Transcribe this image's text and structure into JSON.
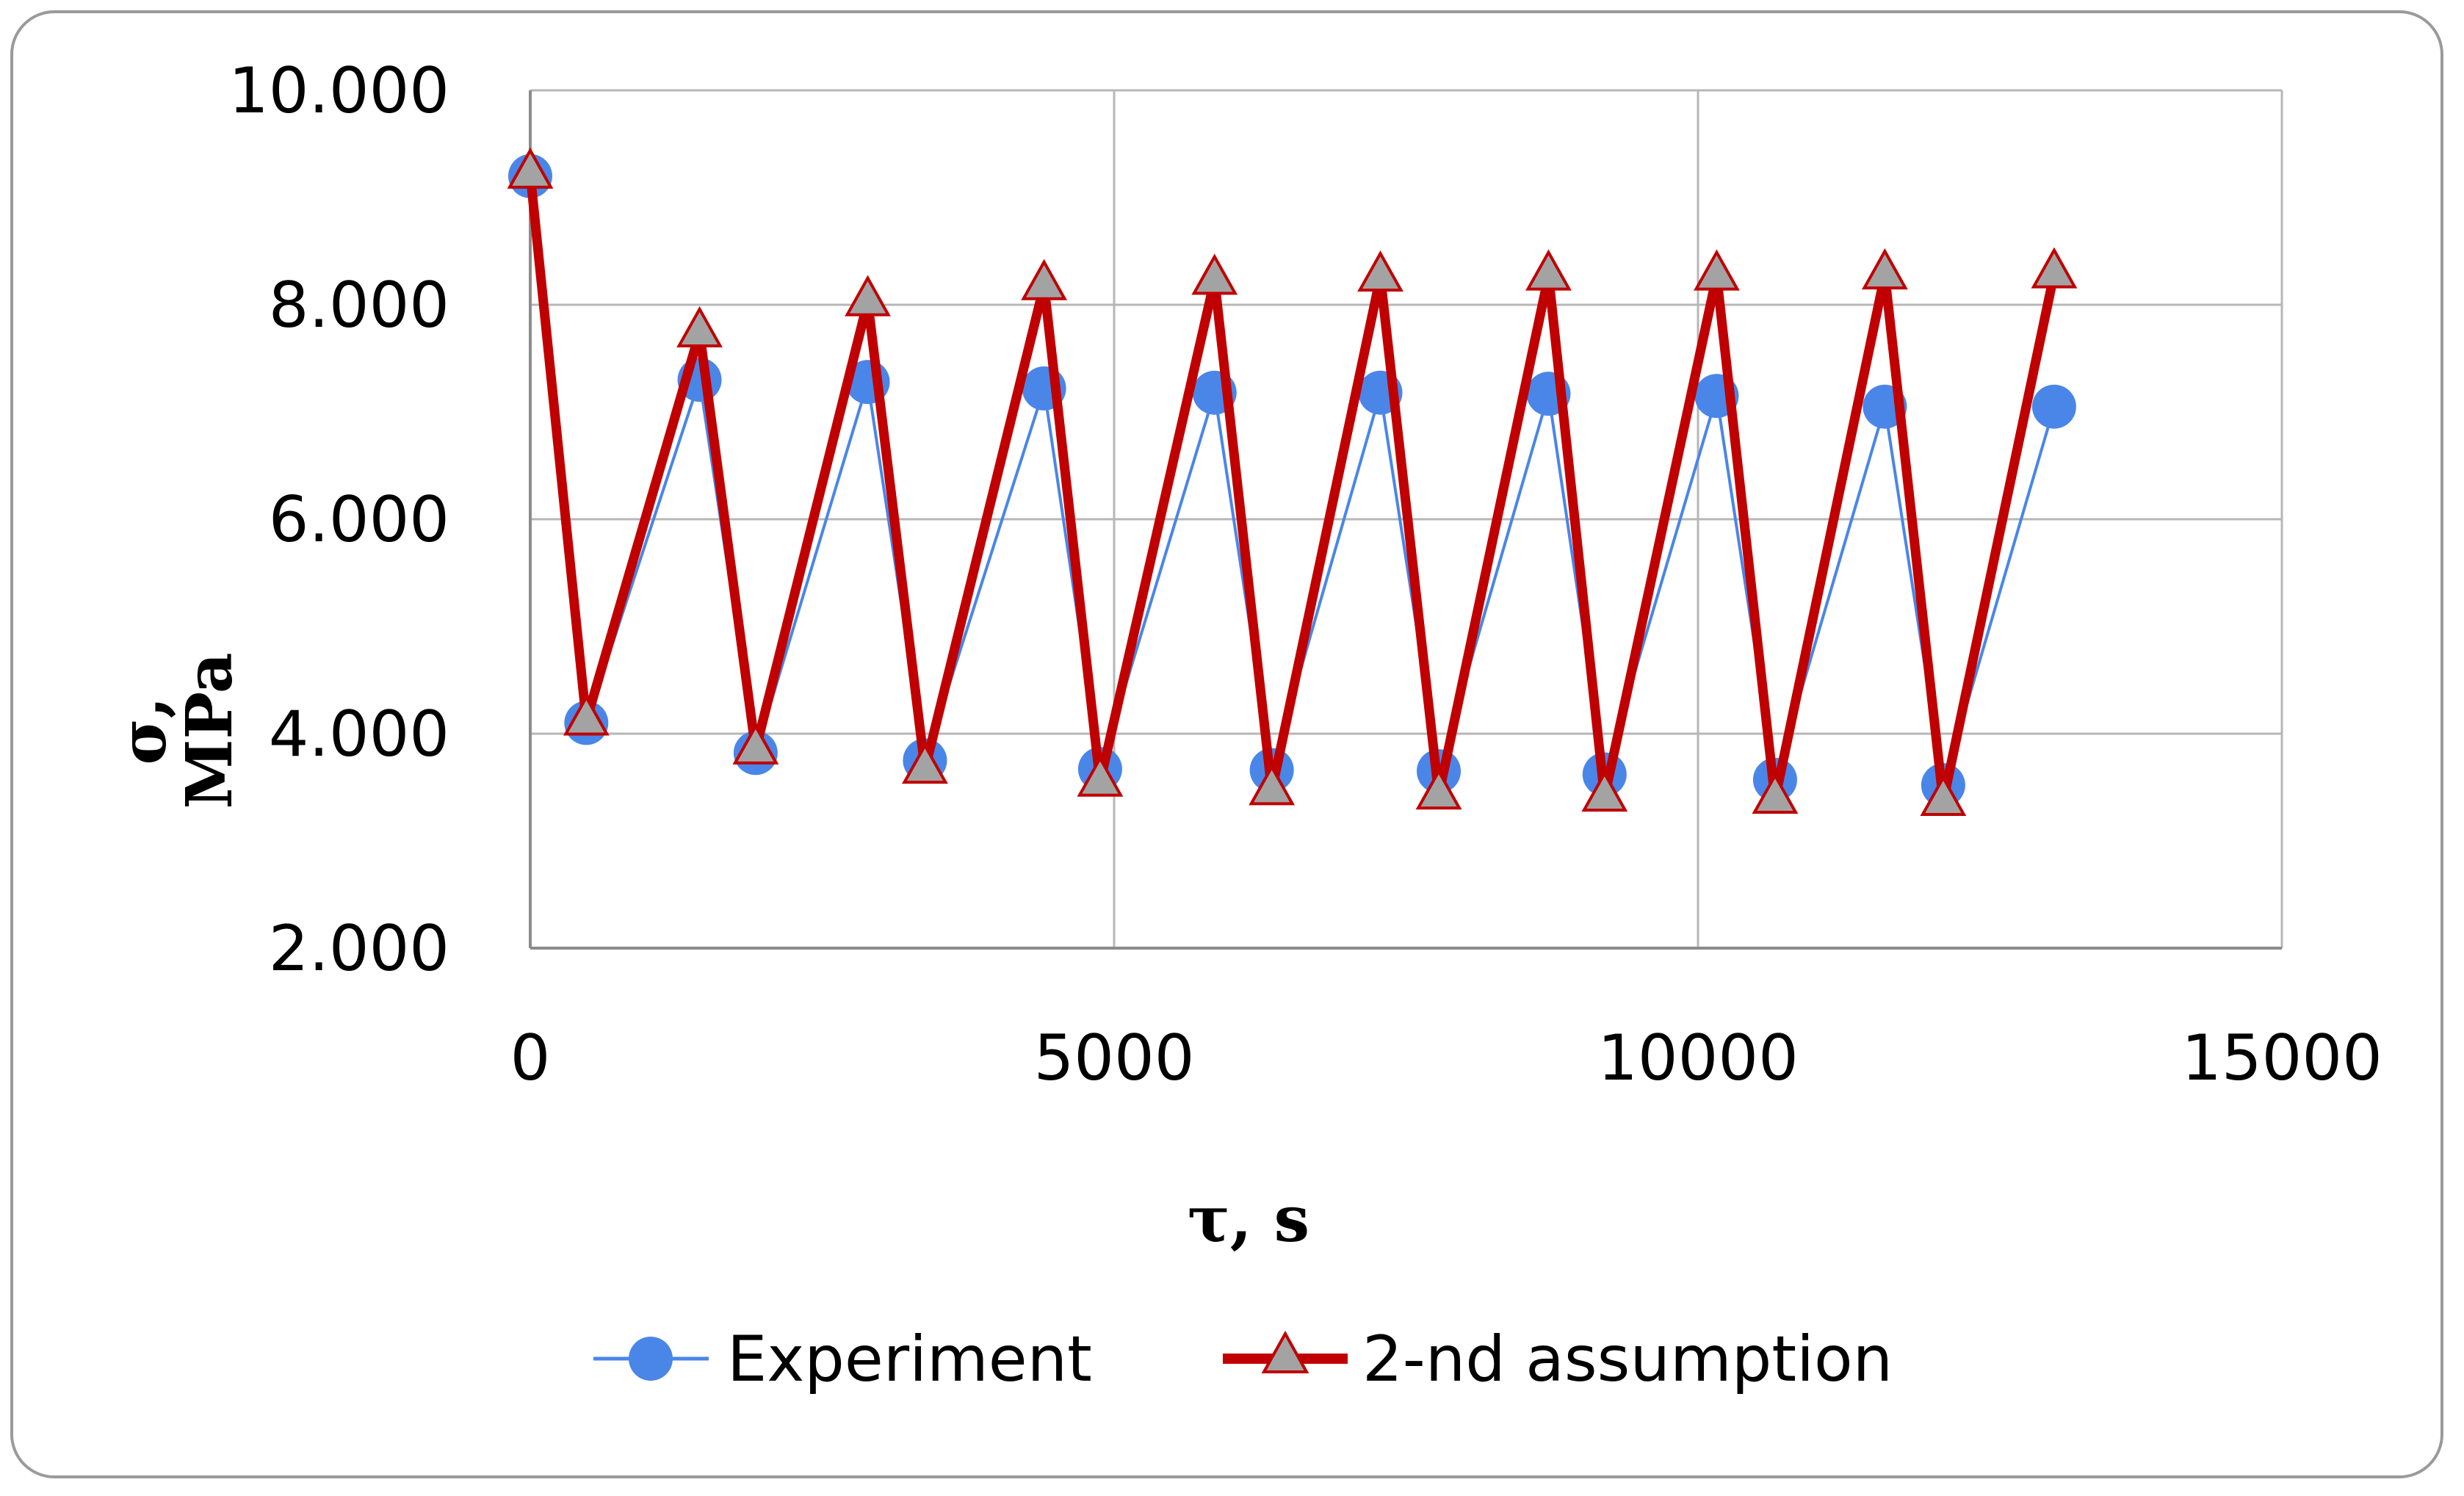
{
  "chart_data": {
    "type": "line",
    "xlabel": "τ, s",
    "ylabel_line1": "σ,",
    "ylabel_line2": "MPa",
    "xlim": [
      0,
      15000
    ],
    "ylim": [
      2,
      10
    ],
    "x_ticks": [
      0,
      5000,
      10000,
      15000
    ],
    "x_tick_labels": [
      "0",
      "5000",
      "10000",
      "15000"
    ],
    "y_ticks": [
      2,
      4,
      6,
      8,
      10
    ],
    "y_tick_labels": [
      "2.000",
      "4.000",
      "6.000",
      "8.000",
      "10.000"
    ],
    "grid": true,
    "legend_position": "bottom",
    "series": [
      {
        "name": "Experiment",
        "color": "#4a86e8",
        "marker": "circle",
        "x": [
          0,
          480,
          1450,
          1930,
          2890,
          3380,
          4400,
          4880,
          5860,
          6350,
          7280,
          7780,
          8720,
          9200,
          10160,
          10660,
          11600,
          12100,
          13050
        ],
        "y": [
          9.2,
          4.1,
          7.3,
          3.82,
          7.28,
          3.75,
          7.22,
          3.67,
          7.18,
          3.66,
          7.18,
          3.65,
          7.17,
          3.62,
          7.15,
          3.57,
          7.05,
          3.52,
          7.05
        ]
      },
      {
        "name": "2-nd assumption",
        "color": "#c00000",
        "marker": "triangle",
        "x": [
          0,
          480,
          1450,
          1930,
          2890,
          3380,
          4400,
          4880,
          5860,
          6350,
          7280,
          7780,
          8720,
          9200,
          10160,
          10660,
          11600,
          12100,
          13050
        ],
        "y": [
          9.22,
          4.12,
          7.74,
          3.85,
          8.03,
          3.67,
          8.18,
          3.55,
          8.23,
          3.47,
          8.26,
          3.43,
          8.27,
          3.41,
          8.27,
          3.39,
          8.28,
          3.37,
          8.29
        ]
      }
    ]
  }
}
